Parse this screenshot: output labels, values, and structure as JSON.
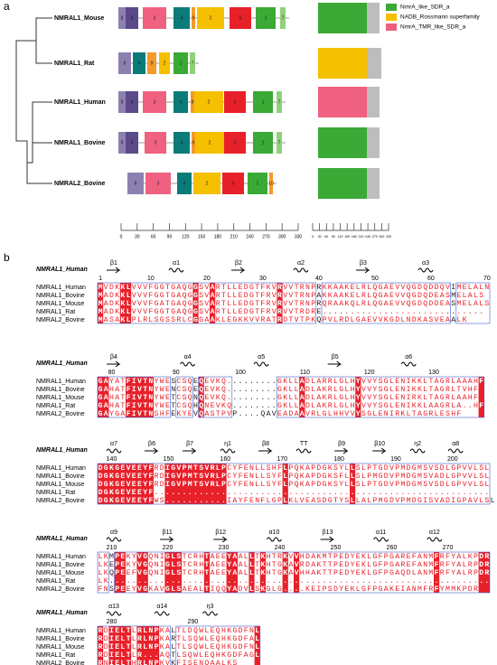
{
  "panel_a": {
    "label": "a",
    "species": [
      {
        "name": "NMRAL1_Mouse",
        "motifs": [
          "8",
          "6",
          "3",
          "4",
          "9",
          "2",
          "5",
          "1",
          "7"
        ],
        "domain_color": "#3aa935"
      },
      {
        "name": "NMRAL1_Rat",
        "motifs": [
          "8",
          "4",
          "9",
          "2",
          "1",
          "7"
        ],
        "domain_color": "#f5c000"
      },
      {
        "name": "NMRAL1_Human",
        "motifs": [
          "8",
          "6",
          "3",
          "4",
          "9",
          "2",
          "5",
          "1",
          "7"
        ],
        "domain_color": "#f06080"
      },
      {
        "name": "NMRAL1_Bovine",
        "motifs": [
          "8",
          "6",
          "3",
          "4",
          "9",
          "2",
          "5",
          "1",
          "7"
        ],
        "domain_color": "#3aa935"
      },
      {
        "name": "NMRAL2_Bovine",
        "motifs": [
          "8",
          "3",
          "4",
          "2",
          "5",
          "1",
          "10"
        ],
        "domain_color": "#3aa935"
      }
    ],
    "motif_colors": {
      "8": "#8c80b0",
      "6": "#5b4a8a",
      "3": "#f06080",
      "4": "#0a7b78",
      "9": "#f39a2b",
      "2": "#f5c000",
      "5": "#e8202a",
      "1": "#3aa935",
      "7": "#90d27a",
      "10": "#f39a2b"
    },
    "legend": [
      {
        "name": "NmrA_like_SDR_a",
        "color": "#3aa935"
      },
      {
        "name": "NADB_Rossmann superfamily",
        "color": "#f5c000"
      },
      {
        "name": "NmrA_TMR_like_SDR_a",
        "color": "#f06080"
      }
    ],
    "scale1": [
      0,
      30,
      60,
      90,
      120,
      150,
      180,
      210,
      240,
      270,
      300,
      330
    ],
    "scale2": [
      0,
      30,
      60,
      90,
      120,
      150,
      180,
      210,
      240,
      270,
      300,
      330
    ]
  },
  "panel_b": {
    "label": "b",
    "blocks": [
      {
        "ref": "NMRAL1_Human",
        "structure": [
          "β1",
          "α1",
          "β2",
          "α2",
          "β3",
          "α3"
        ],
        "ruler": [
          1,
          10,
          20,
          30,
          40,
          50,
          60,
          70
        ],
        "rows": [
          {
            "name": "NMRAL1_Human",
            "seq": "MVDKKLVVVFGGTGAQGGSVARTLLEDGTFKVRVVTRNPRKKAAKELRLQGAEVVQGDQDDQVIMELALN"
          },
          {
            "name": "NMRAL1_Bovine",
            "seq": "MADKKLVVVFGGTGAQGGSVARTLLEDGTFRVRVVTRNPAKKAAKELRLQGAEVVQGDQDEASMELALS"
          },
          {
            "name": "NMRAL1_Mouse",
            "seq": "MADKKLVVVFGATGAQGGSVARTLLEDGTFRVRVVTRNPRQRAAKQLRLQGAEVVQGDQDDEASMELALS"
          },
          {
            "name": "NMRAL1_Rat",
            "seq": "MADKKLVVVFGGTGAQGGSVARTLLEDGTFRVRVVTRDRE............................."
          },
          {
            "name": "NMRAL2_Bovine",
            "seq": "MASAKLPLRLSGSSRLCGGAAKLEGKKVVRATRDTVTPKQPVLRDLGAEVVKGDLNDKASVEAALK"
          }
        ]
      },
      {
        "ref": "NMRAL1_Human",
        "structure": [
          "β4",
          "α4",
          "α5",
          "β5",
          "α6"
        ],
        "ruler": [
          80,
          90,
          100,
          110,
          120,
          130
        ],
        "rows": [
          {
            "name": "NMRAL1_Human",
            "seq": "GAYATFIVTNYWESCSQEQEVKQ.........GKLLADLARRLGLHYVVYSGLENIKKLTAGRLAAAHF"
          },
          {
            "name": "NMRAL1_Bovine",
            "seq": "GAHATFIVTNYWENCSQEQEVKQ.........GKLLADLAKRLGLHYVVYSGLENIKKLTAGRLTVHF"
          },
          {
            "name": "NMRAL1_Mouse",
            "seq": "GAHATFIVTNYWETCSQNQEVKQ.........GKLLADLAKRLGLHYVVYSGLENIRKLTAGRLAAHF"
          },
          {
            "name": "NMRAL1_Rat",
            "seq": "GAHATFIVTNYWETCSQHQNEVKQ........GKLLADLAKRLGLHYVVYSGLENIKKLAAGRLA..HF"
          },
          {
            "name": "NMRAL2_Bovine",
            "seq": "GAYGAFIVTNSHFEKYEVQASTPVP....QAVEADAAVRLGLHHVVYSGLENIRKLTAGRLESHF"
          }
        ]
      },
      {
        "ref": "NMRAL1_Human",
        "structure": [
          "α7",
          "β6",
          "β7",
          "η1",
          "β8",
          "TT",
          "β9",
          "β10",
          "η2",
          "α8"
        ],
        "ruler": [
          140,
          150,
          160,
          170,
          180,
          190,
          200
        ],
        "rows": [
          {
            "name": "NMRAL1_Human",
            "seq": "DGKGEVEEYFRDIGVPMTSVRLPCYFENLLSHFLPQKAPDGKSYLLSLPTGDVPMDGMSVSDLGPVVLSL"
          },
          {
            "name": "NMRAL1_Bovine",
            "seq": "DGKGEVEEYFRDIGVPMTSVRLPCYFENLLSYFLPQKAPDGKSFLLSLPMGDVPMDGMSVADLGPVVLSL"
          },
          {
            "name": "NMRAL1_Mouse",
            "seq": "DGKGEVEEYFRDIGVPMTSVRLPCYFENLLSYFLPQKAPDGKSYLLSLPTGDVPMDGMSVSDLGPVVLSL"
          },
          {
            "name": "NMRAL1_Rat",
            "seq": "DGKGEVEEYF............................................................"
          },
          {
            "name": "NMRAL2_Bovine",
            "seq": "DGKGEVEEYFWS...........IAYFENFLGPLKLVEASDGTYSLLALPMGDVPMDGISVADIGPAVLSL"
          }
        ]
      },
      {
        "ref": "NMRAL1_Human",
        "structure": [
          "α9",
          "β11",
          "β12",
          "α10",
          "β13",
          "α11",
          "α12"
        ],
        "ruler": [
          210,
          220,
          230,
          240,
          250,
          260,
          270
        ],
        "rows": [
          {
            "name": "NMRAL1_Human",
            "seq": "LKMPEKYVGQNIGLSTCRHTAEEYAALLTKHTRKVVHDAKMTPEDYEKLGFPGAREFANMFRFYALKPDR"
          },
          {
            "name": "NMRAL1_Bovine",
            "seq": "LKEPEKYVGQNIGLSTCRHTAEEYAALLTKHTGKAVRDAKTTPEDYEKLGFPGAREFANMFRFYALRPDR"
          },
          {
            "name": "NMRAL1_Mouse",
            "seq": "LKQPEEFVGQNIGLSTCRHTAEEYAALLTKHTGKAVHHAKTTPEDYEKLGFPGAQDLANMFRFYALRPDR"
          },
          {
            "name": "NMRAL1_Rat",
            "seq": "LK...................................................................."
          },
          {
            "name": "NMRAL2_Bovine",
            "seq": "FNSPEEYVGKAVGLSAEALTIQQYADVLSKGLG....KEIPSDYEKLGFPGAKEIANMFRFYMMKPDR"
          }
        ]
      },
      {
        "ref": "NMRAL1_Human",
        "structure": [
          "α13",
          "α14",
          "η3"
        ],
        "ruler": [
          280,
          290
        ],
        "rows": [
          {
            "name": "NMRAL1_Human",
            "seq": "RDIELTLRLNPKALTLDQWLEQHKGDFNL"
          },
          {
            "name": "NMRAL1_Bovine",
            "seq": "RDIELTLRLNPKARTLSQWLEQHKGDFAL"
          },
          {
            "name": "NMRAL1_Mouse",
            "seq": "RDIELTLRLNPKALTLSQWLEQHKGDFNL"
          },
          {
            "name": "NMRAL1_Rat",
            "seq": "RDIELTLR...AQTLSQWLEQHKGDFAGL"
          },
          {
            "name": "NMRAL2_Bovine",
            "seq": "RNIELTHRLNPKVKFISENQAALKS"
          }
        ]
      }
    ]
  }
}
